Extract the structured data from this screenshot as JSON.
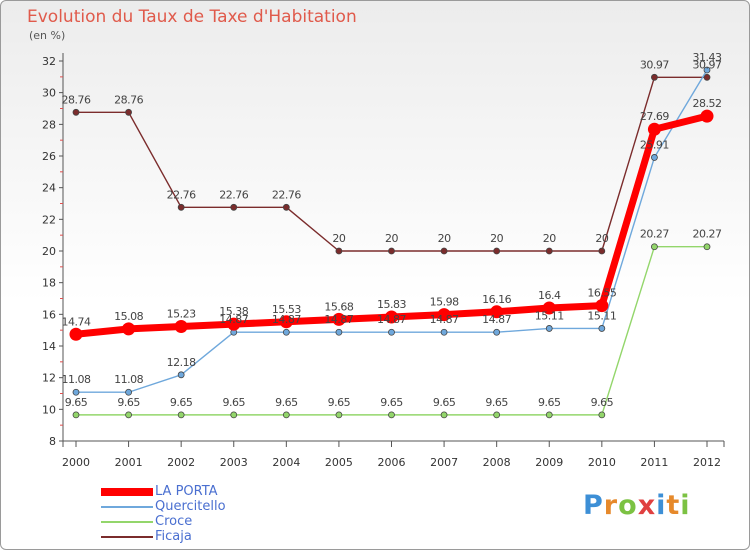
{
  "header": {
    "title": "Evolution du Taux de Taxe d'Habitation",
    "unit": "(en %)"
  },
  "chart_data": {
    "type": "line",
    "title": "Evolution du Taux de Taxe d'Habitation",
    "ylabel": "(en %)",
    "xlabel": "",
    "x": [
      "2000",
      "2001",
      "2002",
      "2003",
      "2004",
      "2005",
      "2006",
      "2007",
      "2008",
      "2009",
      "2010",
      "2011",
      "2012"
    ],
    "ylim": [
      8,
      32
    ],
    "yticks": [
      8,
      10,
      12,
      14,
      16,
      18,
      20,
      22,
      24,
      26,
      28,
      30,
      32
    ],
    "grid": false,
    "legend": "bottom-left",
    "series": [
      {
        "name": "LA PORTA",
        "color": "#ff0000",
        "values": [
          14.74,
          15.08,
          15.23,
          15.38,
          15.53,
          15.68,
          15.83,
          15.98,
          16.16,
          16.4,
          16.55,
          27.69,
          28.52
        ],
        "labels": [
          "14.74",
          "15.08",
          "15.23",
          "15.38",
          "15.53",
          "15.68",
          "15.83",
          "15.98",
          "16.16",
          "16.4",
          "16.55",
          "27.69",
          "28.52"
        ]
      },
      {
        "name": "Quercitello",
        "color": "#6fa8dc",
        "values": [
          11.08,
          11.08,
          12.18,
          14.87,
          14.87,
          14.87,
          14.87,
          14.87,
          14.87,
          15.11,
          15.11,
          25.91,
          31.43
        ],
        "labels": [
          "11.08",
          "11.08",
          "12.18",
          "14.87",
          "14.87",
          "14.87",
          "14.87",
          "14.87",
          "14.87",
          "15.11",
          "15.11",
          "25.91",
          "31.43"
        ]
      },
      {
        "name": "Croce",
        "color": "#93d66b",
        "values": [
          9.65,
          9.65,
          9.65,
          9.65,
          9.65,
          9.65,
          9.65,
          9.65,
          9.65,
          9.65,
          9.65,
          20.27,
          20.27
        ],
        "labels": [
          "9.65",
          "9.65",
          "9.65",
          "9.65",
          "9.65",
          "9.65",
          "9.65",
          "9.65",
          "9.65",
          "9.65",
          "9.65",
          "20.27",
          "20.27"
        ]
      },
      {
        "name": "Ficaja",
        "color": "#7b2c2c",
        "values": [
          28.76,
          28.76,
          22.76,
          22.76,
          22.76,
          20,
          20,
          20,
          20,
          20,
          20,
          30.97,
          30.97
        ],
        "labels": [
          "28.76",
          "28.76",
          "22.76",
          "22.76",
          "22.76",
          "20",
          "20",
          "20",
          "20",
          "20",
          "20",
          "30.97",
          "30.97"
        ]
      }
    ]
  },
  "brand": {
    "letters": [
      "P",
      "r",
      "o",
      "x",
      "i",
      "t",
      "i"
    ],
    "colors": [
      "#3d8fd6",
      "#e6892b",
      "#7cc243",
      "#e04040",
      "#3d8fd6",
      "#e6892b",
      "#7cc243"
    ]
  }
}
